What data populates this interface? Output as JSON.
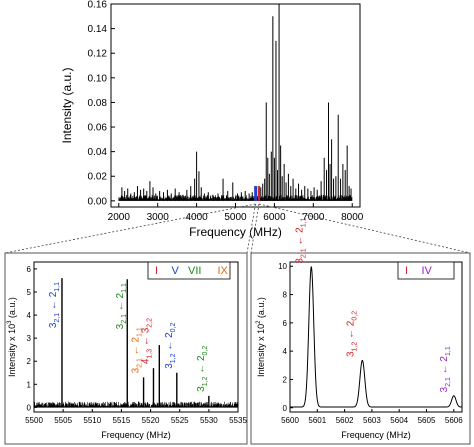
{
  "chart_data": [
    {
      "type": "line",
      "panel": "top",
      "xlabel": "Frequency (MHz)",
      "ylabel": "Intensity (a.u.)",
      "xlim": [
        1800,
        8200
      ],
      "ylim": [
        -0.005,
        0.16
      ],
      "xticks": [
        2000,
        3000,
        4000,
        5000,
        6000,
        7000,
        8000
      ],
      "yticks": [
        0.0,
        0.02,
        0.04,
        0.06,
        0.08,
        0.1,
        0.12,
        0.14,
        0.16
      ],
      "ytick_labels": [
        "0.00",
        "0.02",
        "0.04",
        "0.06",
        "0.08",
        "0.10",
        "0.12",
        "0.14",
        "0.16"
      ],
      "grid": false,
      "stick_color": "#000000",
      "highlight_colors": [
        "#1f3fcf",
        "#d0202a"
      ],
      "highlight_ranges": [
        [
          5480,
          5560
        ],
        [
          5580,
          5620
        ]
      ],
      "peaks": [
        {
          "x": 2080,
          "y": 0.011
        },
        {
          "x": 2150,
          "y": 0.008
        },
        {
          "x": 2230,
          "y": 0.01
        },
        {
          "x": 2310,
          "y": 0.006
        },
        {
          "x": 2400,
          "y": 0.007
        },
        {
          "x": 2480,
          "y": 0.012
        },
        {
          "x": 2560,
          "y": 0.009
        },
        {
          "x": 2640,
          "y": 0.01
        },
        {
          "x": 2720,
          "y": 0.008
        },
        {
          "x": 2800,
          "y": 0.016
        },
        {
          "x": 2880,
          "y": 0.011
        },
        {
          "x": 2950,
          "y": 0.006
        },
        {
          "x": 3050,
          "y": 0.008
        },
        {
          "x": 3150,
          "y": 0.007
        },
        {
          "x": 3250,
          "y": 0.009
        },
        {
          "x": 3350,
          "y": 0.006
        },
        {
          "x": 3450,
          "y": 0.01
        },
        {
          "x": 3550,
          "y": 0.007
        },
        {
          "x": 3650,
          "y": 0.005
        },
        {
          "x": 3750,
          "y": 0.009
        },
        {
          "x": 3850,
          "y": 0.012
        },
        {
          "x": 3950,
          "y": 0.018
        },
        {
          "x": 4000,
          "y": 0.04
        },
        {
          "x": 4060,
          "y": 0.024
        },
        {
          "x": 4120,
          "y": 0.011
        },
        {
          "x": 4200,
          "y": 0.006
        },
        {
          "x": 4300,
          "y": 0.007
        },
        {
          "x": 4420,
          "y": 0.005
        },
        {
          "x": 4550,
          "y": 0.006
        },
        {
          "x": 4680,
          "y": 0.018
        },
        {
          "x": 4800,
          "y": 0.008
        },
        {
          "x": 4930,
          "y": 0.015
        },
        {
          "x": 5050,
          "y": 0.006
        },
        {
          "x": 5150,
          "y": 0.007
        },
        {
          "x": 5250,
          "y": 0.008
        },
        {
          "x": 5350,
          "y": 0.006
        },
        {
          "x": 5430,
          "y": 0.007
        },
        {
          "x": 5505,
          "y": 0.012
        },
        {
          "x": 5601,
          "y": 0.01
        },
        {
          "x": 5650,
          "y": 0.011
        },
        {
          "x": 5700,
          "y": 0.014
        },
        {
          "x": 5750,
          "y": 0.018
        },
        {
          "x": 5790,
          "y": 0.08
        },
        {
          "x": 5830,
          "y": 0.035
        },
        {
          "x": 5870,
          "y": 0.022
        },
        {
          "x": 5920,
          "y": 0.04
        },
        {
          "x": 5960,
          "y": 0.15
        },
        {
          "x": 6000,
          "y": 0.035
        },
        {
          "x": 6040,
          "y": 0.13
        },
        {
          "x": 6080,
          "y": 0.025
        },
        {
          "x": 6120,
          "y": 0.16
        },
        {
          "x": 6160,
          "y": 0.045
        },
        {
          "x": 6200,
          "y": 0.02
        },
        {
          "x": 6250,
          "y": 0.03
        },
        {
          "x": 6300,
          "y": 0.015
        },
        {
          "x": 6360,
          "y": 0.022
        },
        {
          "x": 6420,
          "y": 0.012
        },
        {
          "x": 6480,
          "y": 0.018
        },
        {
          "x": 6550,
          "y": 0.01
        },
        {
          "x": 6620,
          "y": 0.014
        },
        {
          "x": 6700,
          "y": 0.009
        },
        {
          "x": 6780,
          "y": 0.012
        },
        {
          "x": 6860,
          "y": 0.01
        },
        {
          "x": 6940,
          "y": 0.008
        },
        {
          "x": 7020,
          "y": 0.011
        },
        {
          "x": 7100,
          "y": 0.009
        },
        {
          "x": 7200,
          "y": 0.016
        },
        {
          "x": 7280,
          "y": 0.035
        },
        {
          "x": 7340,
          "y": 0.025
        },
        {
          "x": 7390,
          "y": 0.08
        },
        {
          "x": 7430,
          "y": 0.03
        },
        {
          "x": 7470,
          "y": 0.05
        },
        {
          "x": 7520,
          "y": 0.018
        },
        {
          "x": 7580,
          "y": 0.02
        },
        {
          "x": 7640,
          "y": 0.07
        },
        {
          "x": 7700,
          "y": 0.018
        },
        {
          "x": 7760,
          "y": 0.03
        },
        {
          "x": 7820,
          "y": 0.025
        },
        {
          "x": 7870,
          "y": 0.045
        },
        {
          "x": 7920,
          "y": 0.012
        },
        {
          "x": 7970,
          "y": 0.01
        }
      ]
    },
    {
      "type": "line",
      "panel": "bottom-left",
      "xlabel": "Frequency (MHz)",
      "ylabel": "Intensity x 10",
      "ylabel_exponent": "3",
      "ylabel_unit": "(a.u.)",
      "xlim": [
        5500,
        5535
      ],
      "ylim": [
        -0.2,
        6.3
      ],
      "xticks": [
        5500,
        5505,
        5510,
        5515,
        5520,
        5525,
        5530,
        5535
      ],
      "yticks": [
        0,
        1,
        2,
        3,
        4,
        5,
        6
      ],
      "grid": false,
      "legend_position": "top-right",
      "legend": [
        {
          "label": "I",
          "color": "#d0202a"
        },
        {
          "label": "V",
          "color": "#1f3fcf"
        },
        {
          "label": "VII",
          "color": "#1a8a1a"
        },
        {
          "label": "IX",
          "color": "#e06a10"
        }
      ],
      "peaks": [
        {
          "x": 5504.8,
          "y": 5.6
        },
        {
          "x": 5516.0,
          "y": 5.55
        },
        {
          "x": 5518.8,
          "y": 1.3
        },
        {
          "x": 5520.5,
          "y": 1.7
        },
        {
          "x": 5521.5,
          "y": 2.7
        },
        {
          "x": 5524.5,
          "y": 1.5
        },
        {
          "x": 5530.0,
          "y": 0.5
        }
      ],
      "annotations": [
        {
          "main": "3",
          "sub": "2,1",
          "arrow": " ← ",
          "main2": "2",
          "sub2": "1,1",
          "color": "#1f3fcf",
          "anchor": "right",
          "dx": -6,
          "x": 5504.8,
          "y": 5.6
        },
        {
          "main": "3",
          "sub": "2,1",
          "arrow": " ← ",
          "main2": "2",
          "sub2": "1,1",
          "color": "#1a8a1a",
          "anchor": "right",
          "dx": -4,
          "x": 5516.0,
          "y": 5.55
        },
        {
          "main": "3",
          "sub": "2,1",
          "arrow": " ← ",
          "main2": "2",
          "sub2": "1,1",
          "color": "#e06a10",
          "anchor": "left",
          "dx": -5,
          "x": 5518.8,
          "y": 1.3
        },
        {
          "main": "4",
          "sub": "1,3",
          "arrow": " ← ",
          "main2": "3",
          "sub2": "2,2",
          "color": "#d0202a",
          "anchor": "left",
          "dx": -5,
          "x": 5520.5,
          "y": 1.7
        },
        {
          "main": "3",
          "sub": "1,2",
          "arrow": " ← ",
          "main2": "2",
          "sub2": "0,2",
          "color": "#1f3fcf",
          "anchor": "left",
          "dx": -5,
          "x": 5524.5,
          "y": 1.5
        },
        {
          "main": "3",
          "sub": "1,2",
          "arrow": " ← ",
          "main2": "2",
          "sub2": "0,2",
          "color": "#1a8a1a",
          "anchor": "left",
          "dx": -5,
          "x": 5530.0,
          "y": 0.5
        }
      ]
    },
    {
      "type": "line",
      "panel": "bottom-right",
      "xlabel": "Frequency (MHz)",
      "ylabel": "Intensity x 10",
      "ylabel_exponent": "2",
      "ylabel_unit": "(a.u.)",
      "xlim": [
        5600,
        5606.3
      ],
      "ylim": [
        -0.3,
        10.3
      ],
      "xticks": [
        5600,
        5601,
        5602,
        5603,
        5604,
        5605,
        5606
      ],
      "yticks": [
        0,
        2,
        4,
        6,
        8,
        10
      ],
      "grid": false,
      "legend_position": "top-right",
      "legend": [
        {
          "label": "I",
          "color": "#d0202a"
        },
        {
          "label": "IV",
          "color": "#9a20c8"
        }
      ],
      "peaks": [
        {
          "x": 5600.78,
          "y": 9.9,
          "w": 0.09
        },
        {
          "x": 5602.65,
          "y": 3.3,
          "w": 0.09
        },
        {
          "x": 5606.0,
          "y": 0.8,
          "w": 0.08
        }
      ],
      "annotations": [
        {
          "main": "3",
          "sub": "2,1",
          "arrow": " ← ",
          "main2": "2",
          "sub2": "1,1",
          "color": "#d0202a",
          "anchor": "left",
          "dx": -9,
          "x": 5600.78,
          "y": 9.9
        },
        {
          "main": "3",
          "sub": "1,2",
          "arrow": " ← ",
          "main2": "2",
          "sub2": "0,2",
          "color": "#d0202a",
          "anchor": "left",
          "dx": -9,
          "x": 5602.65,
          "y": 3.3
        },
        {
          "main": "3",
          "sub": "2,1",
          "arrow": " ← ",
          "main2": "2",
          "sub2": "1,1",
          "color": "#9a20c8",
          "anchor": "left",
          "dx": -7,
          "x": 5606.0,
          "y": 0.8
        }
      ]
    }
  ]
}
